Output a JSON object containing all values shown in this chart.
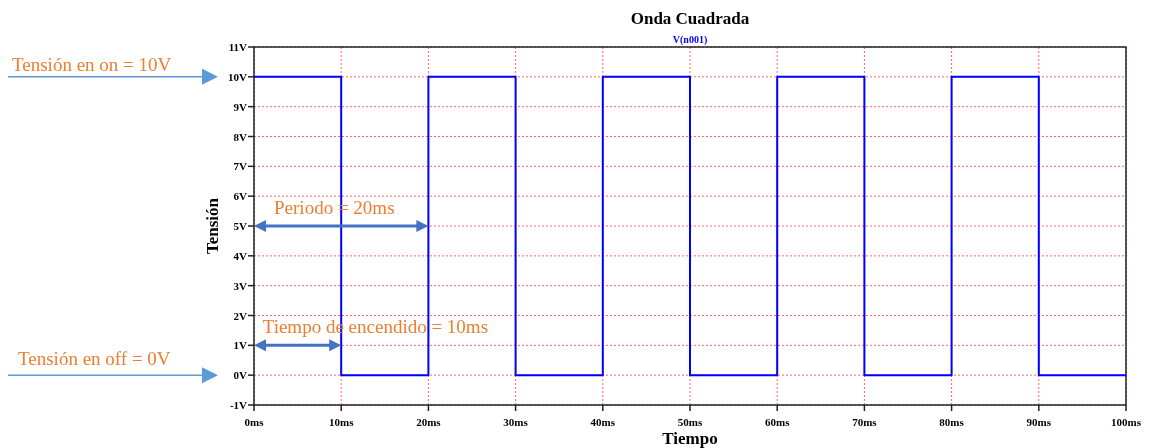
{
  "chart_data": {
    "type": "step",
    "title": "Onda Cuadrada",
    "xlabel": "Tiempo",
    "ylabel": "Tensión",
    "x": [
      0,
      10,
      20,
      30,
      40,
      50,
      60,
      70,
      80,
      90,
      100
    ],
    "series": [
      {
        "name": "V(n001)",
        "color": "#0000ff",
        "values": [
          10,
          0,
          10,
          0,
          10,
          0,
          10,
          0,
          10,
          0,
          0
        ]
      }
    ],
    "xlim": [
      0,
      100
    ],
    "xticks": [
      {
        "value": 0,
        "label": "0ms"
      },
      {
        "value": 10,
        "label": "10ms"
      },
      {
        "value": 20,
        "label": "20ms"
      },
      {
        "value": 30,
        "label": "30ms"
      },
      {
        "value": 40,
        "label": "40ms"
      },
      {
        "value": 50,
        "label": "50ms"
      },
      {
        "value": 60,
        "label": "60ms"
      },
      {
        "value": 70,
        "label": "70ms"
      },
      {
        "value": 80,
        "label": "80ms"
      },
      {
        "value": 90,
        "label": "90ms"
      },
      {
        "value": 100,
        "label": "100ms"
      }
    ],
    "ylim": [
      -1,
      11
    ],
    "yticks": [
      {
        "value": -1,
        "label": "-1V"
      },
      {
        "value": 0,
        "label": "0V"
      },
      {
        "value": 1,
        "label": "1V"
      },
      {
        "value": 2,
        "label": "2V"
      },
      {
        "value": 3,
        "label": "3V"
      },
      {
        "value": 4,
        "label": "4V"
      },
      {
        "value": 5,
        "label": "5V"
      },
      {
        "value": 6,
        "label": "6V"
      },
      {
        "value": 7,
        "label": "7V"
      },
      {
        "value": 8,
        "label": "8V"
      },
      {
        "value": 9,
        "label": "9V"
      },
      {
        "value": 10,
        "label": "10V"
      },
      {
        "value": 11,
        "label": "11V"
      }
    ],
    "grid": true,
    "annotations": [
      "Tensión en on = 10V",
      "Tensión en off = 0V",
      "Periodo = 20ms",
      "Tiempo de encendido = 10ms"
    ]
  }
}
